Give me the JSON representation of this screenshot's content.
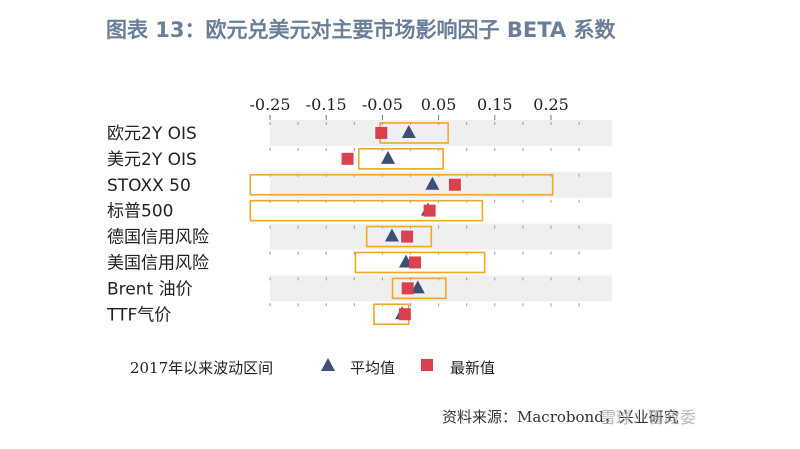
{
  "title": "图表 13：欧元兑美元对主要市场影响因子 BETA 系数",
  "chart_data": {
    "type": "range-dot",
    "x_ticks": [
      -0.25,
      -0.15,
      -0.05,
      0.05,
      0.15,
      0.25
    ],
    "x_tick_labels": [
      "-0.25",
      "-0.15",
      "-0.05",
      "0.05",
      "0.15",
      "0.25"
    ],
    "xlim": [
      -0.31,
      0.29
    ],
    "categories": [
      "欧元2Y OIS",
      "美元2Y OIS",
      "STOXX 50",
      "标普500",
      "德国信用风险",
      "美国信用风险",
      "Brent 油价",
      "TTF气价"
    ],
    "series": [
      {
        "name": "2017年以来波动区间",
        "kind": "range",
        "values": [
          [
            -0.054,
            0.067
          ],
          [
            -0.092,
            0.058
          ],
          [
            -0.285,
            0.253
          ],
          [
            -0.285,
            0.128
          ],
          [
            -0.078,
            0.037
          ],
          [
            -0.098,
            0.132
          ],
          [
            -0.032,
            0.063
          ],
          [
            -0.065,
            -0.003
          ]
        ]
      },
      {
        "name": "平均值",
        "kind": "triangle",
        "values": [
          -0.003,
          -0.04,
          0.039,
          0.031,
          -0.033,
          -0.008,
          0.013,
          -0.015
        ]
      },
      {
        "name": "最新值",
        "kind": "square",
        "values": [
          -0.052,
          -0.112,
          0.079,
          0.034,
          -0.006,
          0.008,
          -0.005,
          -0.01
        ]
      }
    ],
    "colors": {
      "range": "#f5a623",
      "triangle": "#3e4f77",
      "square": "#d9414f",
      "row_band": "#efefef"
    }
  },
  "source": "资料来源：Macrobond，兴业研究",
  "watermark": "雪球：鲁政委"
}
